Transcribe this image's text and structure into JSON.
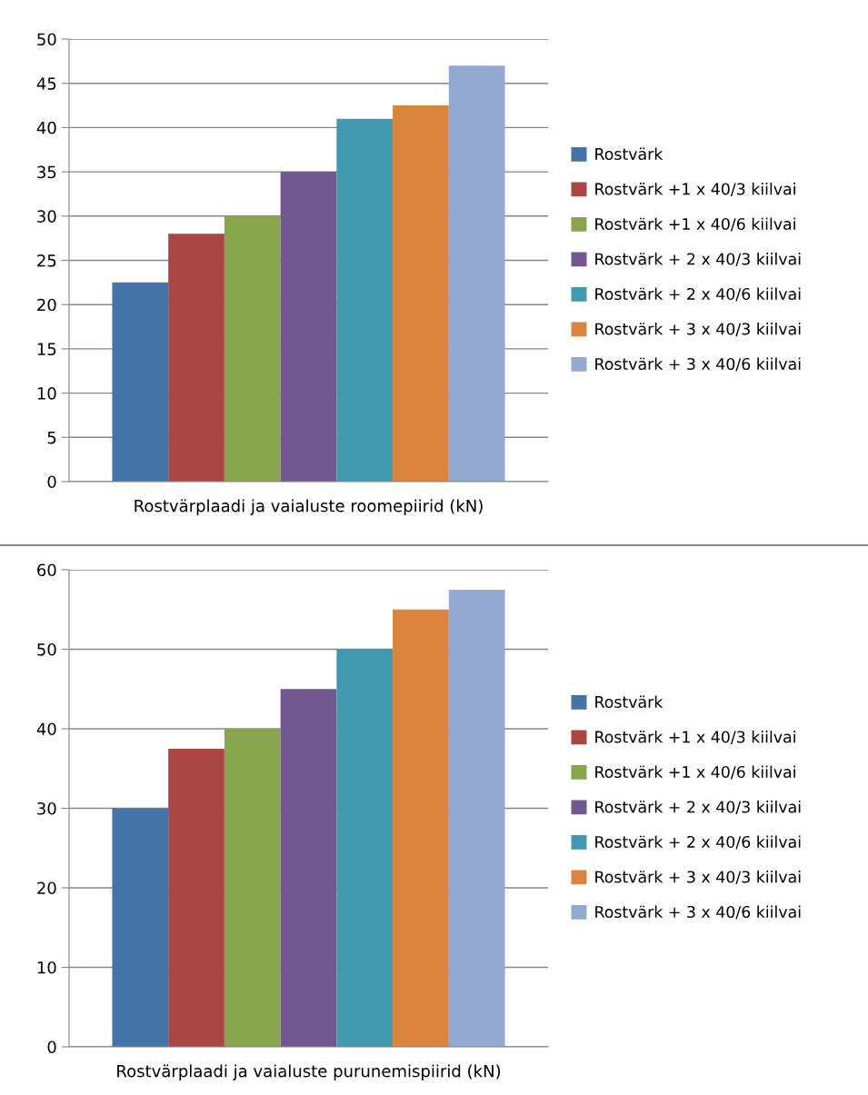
{
  "chart_data": [
    {
      "type": "bar",
      "categories": [
        "Rostvärplaadi ja vaialuste roomepiirid (kN)"
      ],
      "ylim": [
        0,
        50
      ],
      "yticks": [
        0,
        5,
        10,
        15,
        20,
        25,
        30,
        35,
        40,
        45,
        50
      ],
      "grid": "y",
      "legend": "right",
      "series": [
        {
          "name": "Rostvärk",
          "color": "#4572a7",
          "values": [
            22.5
          ]
        },
        {
          "name": "Rostvärk +1 x 40/3 kiilvai",
          "color": "#aa4643",
          "values": [
            28
          ]
        },
        {
          "name": "Rostvärk +1 x 40/6 kiilvai",
          "color": "#89a54e",
          "values": [
            30
          ]
        },
        {
          "name": "Rostvärk + 2 x 40/3 kiilvai",
          "color": "#71588f",
          "values": [
            35
          ]
        },
        {
          "name": "Rostvärk + 2 x 40/6 kiilvai",
          "color": "#4198af",
          "values": [
            41
          ]
        },
        {
          "name": "Rostvärk + 3 x 40/3 kiilvai",
          "color": "#db843d",
          "values": [
            42.5
          ]
        },
        {
          "name": "Rostvärk + 3 x 40/6 kiilvai",
          "color": "#93a9cf",
          "values": [
            47
          ]
        }
      ]
    },
    {
      "type": "bar",
      "categories": [
        "Rostvärplaadi ja vaialuste purunemispiirid (kN)"
      ],
      "ylim": [
        0,
        60
      ],
      "yticks": [
        0,
        10,
        20,
        30,
        40,
        50,
        60
      ],
      "grid": "y",
      "legend": "right",
      "series": [
        {
          "name": "Rostvärk",
          "color": "#4572a7",
          "values": [
            30
          ]
        },
        {
          "name": "Rostvärk +1 x 40/3 kiilvai",
          "color": "#aa4643",
          "values": [
            37.5
          ]
        },
        {
          "name": "Rostvärk +1 x 40/6 kiilvai",
          "color": "#89a54e",
          "values": [
            40
          ]
        },
        {
          "name": "Rostvärk + 2 x 40/3 kiilvai",
          "color": "#71588f",
          "values": [
            45
          ]
        },
        {
          "name": "Rostvärk + 2 x 40/6 kiilvai",
          "color": "#4198af",
          "values": [
            50
          ]
        },
        {
          "name": "Rostvärk + 3 x 40/3 kiilvai",
          "color": "#db843d",
          "values": [
            55
          ]
        },
        {
          "name": "Rostvärk + 3 x 40/6 kiilvai",
          "color": "#93a9cf",
          "values": [
            57.5
          ]
        }
      ]
    }
  ]
}
